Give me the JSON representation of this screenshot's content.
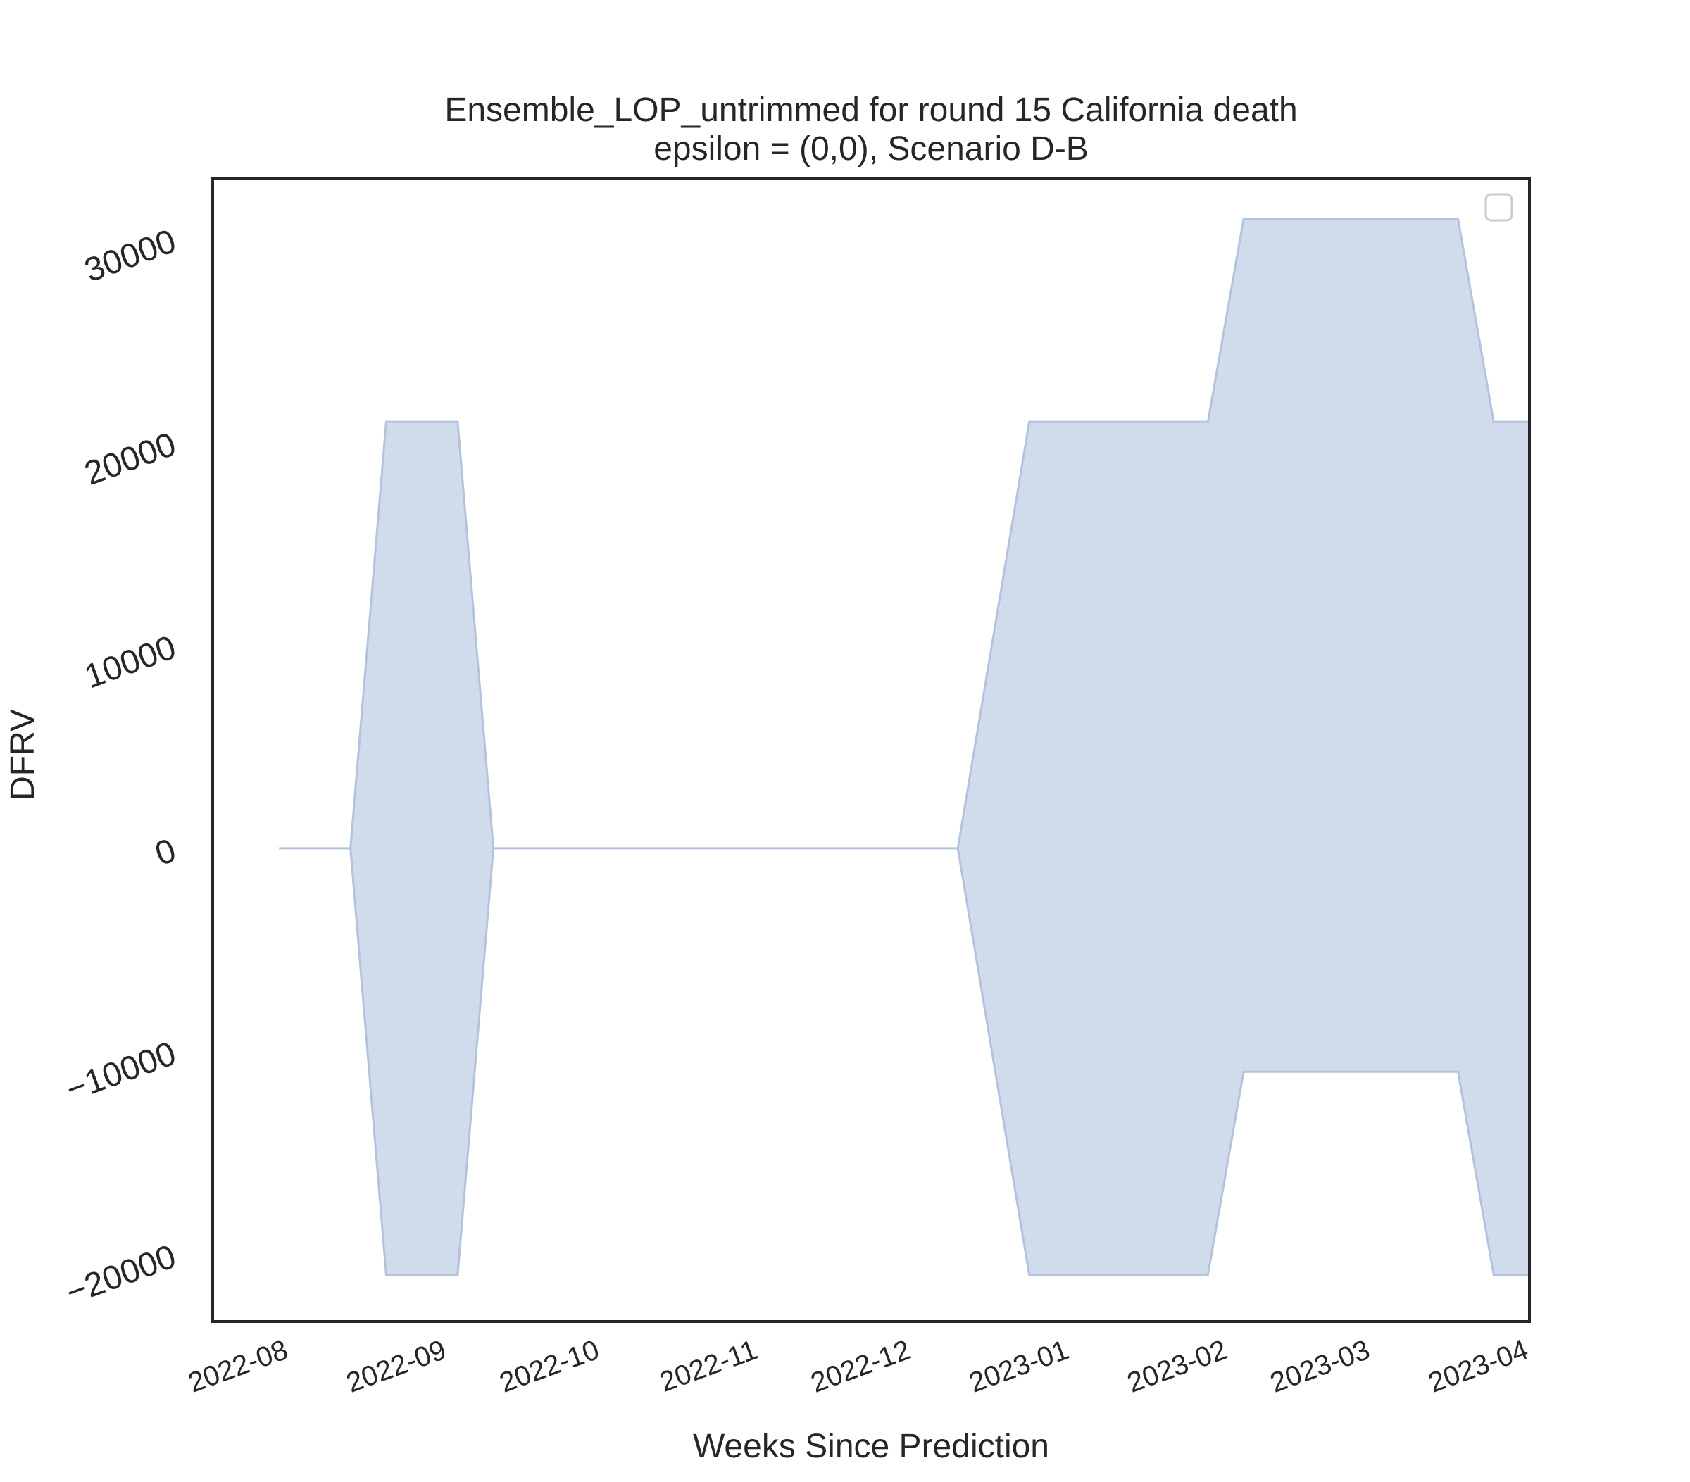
{
  "chart_data": {
    "type": "area",
    "title": "Ensemble_LOP_untrimmed for round 15 California death",
    "subtitle": "epsilon = (0,0), Scenario D-B",
    "xlabel": "Weeks Since Prediction",
    "ylabel": "DFRV",
    "x_tick_labels": [
      "2022-08",
      "2022-09",
      "2022-10",
      "2022-11",
      "2022-12",
      "2023-01",
      "2023-02",
      "2023-03",
      "2023-04"
    ],
    "y_tick_labels": [
      "−20000",
      "−10000",
      "0",
      "10000",
      "20000",
      "30000"
    ],
    "y_tick_values": [
      -20000,
      -10000,
      0,
      10000,
      20000,
      30000
    ],
    "xlim": [
      "2022-07-18",
      "2023-04-02"
    ],
    "ylim": [
      -23300,
      33000
    ],
    "grid": false,
    "legend": {
      "placement": "top-right",
      "entries": []
    },
    "band_color": "#d0dbeb",
    "band_edge_color": "#b4c3dd",
    "series": [
      {
        "x": [
          "2022-07-31",
          "2022-08-14",
          "2022-08-21",
          "2022-09-04",
          "2022-09-11",
          "2022-12-11",
          "2022-12-25",
          "2023-01-29",
          "2023-02-05",
          "2023-03-19",
          "2023-03-26",
          "2023-04-02"
        ],
        "lower": [
          0,
          0,
          -21000,
          -21000,
          0,
          0,
          -21000,
          -21000,
          -11000,
          -11000,
          -21000,
          -21000
        ],
        "upper": [
          0,
          0,
          21000,
          21000,
          0,
          0,
          21000,
          21000,
          31000,
          31000,
          21000,
          21000
        ]
      }
    ]
  }
}
